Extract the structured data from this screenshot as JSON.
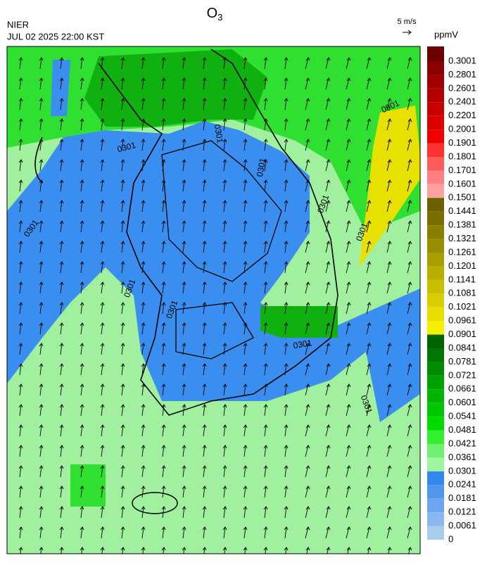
{
  "header": {
    "title_base": "O",
    "title_sub": "3",
    "org": "NIER",
    "timestamp": "JUL 02 2025 22:00 KST",
    "wind_scale": "5 m/s"
  },
  "colorbar": {
    "unit": "ppmV",
    "labels": [
      0.3001,
      0.2801,
      0.2601,
      0.2401,
      0.2201,
      0.2001,
      0.1901,
      0.1801,
      0.1701,
      0.1601,
      0.1501,
      0.1441,
      0.1381,
      0.1321,
      0.1261,
      0.1201,
      0.1141,
      0.1081,
      0.1021,
      0.0961,
      0.0901,
      0.0841,
      0.0781,
      0.0721,
      0.0661,
      0.0601,
      0.0541,
      0.0481,
      0.0421,
      0.0361,
      0.0301,
      0.0241,
      0.0181,
      0.0121,
      0.0061,
      0
    ],
    "colors": [
      "#6b0000",
      "#8b0000",
      "#a00000",
      "#b40000",
      "#c80000",
      "#dc0000",
      "#f00000",
      "#ff3030",
      "#ff5a5a",
      "#ff8080",
      "#ffa0a0",
      "#6b6000",
      "#7a6e00",
      "#8a7e00",
      "#998e00",
      "#a99e00",
      "#b9ae00",
      "#c9be00",
      "#d9ce00",
      "#e9de00",
      "#f5ef00",
      "#006400",
      "#007800",
      "#008c00",
      "#00a000",
      "#00b400",
      "#00c800",
      "#00dc00",
      "#30f030",
      "#70f070",
      "#a0f5a0",
      "#3388ee",
      "#4f97ee",
      "#6ba6ee",
      "#88b8ee",
      "#a8ccee"
    ]
  },
  "contour_labels": [
    "0301",
    "0301",
    "0301",
    "0301",
    "0301",
    "0901",
    "0301",
    "0301",
    "0301",
    "0301",
    "0301"
  ]
}
